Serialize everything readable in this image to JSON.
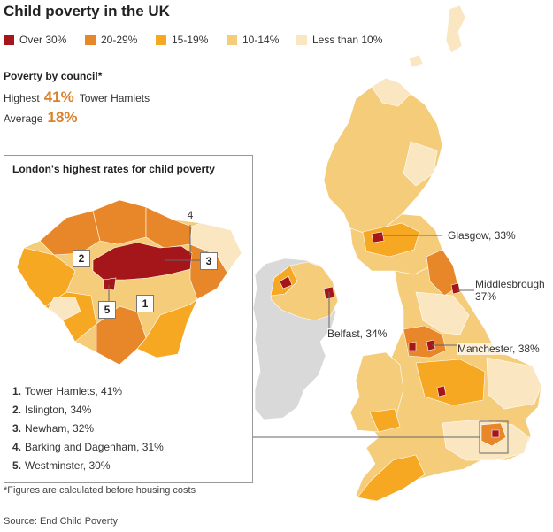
{
  "title": "Child poverty in the UK",
  "colors": {
    "over30": "#a4161a",
    "r20_29": "#e8872a",
    "r15_19": "#f7a823",
    "r10_14": "#f5cc7a",
    "under10": "#fbe6c2",
    "accent_text": "#d9822b",
    "ireland": "#d9d9d9"
  },
  "legend": [
    {
      "label": "Over 30%",
      "color": "#a4161a"
    },
    {
      "label": "20-29%",
      "color": "#e8872a"
    },
    {
      "label": "15-19%",
      "color": "#f7a823"
    },
    {
      "label": "10-14%",
      "color": "#f5cc7a"
    },
    {
      "label": "Less than 10%",
      "color": "#fbe6c2"
    }
  ],
  "council": {
    "title": "Poverty by council*",
    "highest": {
      "label": "Highest",
      "value": "41%",
      "name": "Tower Hamlets"
    },
    "average": {
      "label": "Average",
      "value": "18%"
    }
  },
  "inset": {
    "title": "London's highest rates for child poverty",
    "markers": [
      "1",
      "2",
      "3",
      "4",
      "5"
    ],
    "ranks": [
      {
        "num": "1.",
        "text": "Tower Hamlets, 41%"
      },
      {
        "num": "2.",
        "text": "Islington, 34%"
      },
      {
        "num": "3.",
        "text": "Newham, 32%"
      },
      {
        "num": "4.",
        "text": "Barking and Dagenham, 31%"
      },
      {
        "num": "5.",
        "text": "Westminster, 30%"
      }
    ]
  },
  "cities": {
    "glasgow": "Glasgow, 33%",
    "middlesbrough_name": "Middlesbrough",
    "middlesbrough_value": "37%",
    "belfast": "Belfast, 34%",
    "manchester": "Manchester, 38%"
  },
  "footnote": "*Figures are calculated before housing costs",
  "source": "Source: End Child Poverty"
}
